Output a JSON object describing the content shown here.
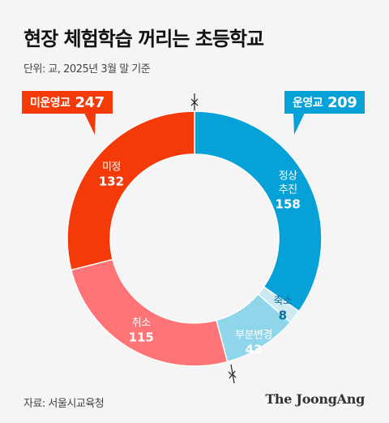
{
  "title": "현장 체험학습 꺼리는 초등학교",
  "unit_note": "단위: 교, 2025년 3월 말 기준",
  "source": "자료: 서울시교육청",
  "brand": "The JoongAng",
  "groups": [
    {
      "name": "미운영교",
      "total": "247",
      "color": "#f43a09"
    },
    {
      "name": "운영교",
      "total": "209",
      "color": "#06a2d7"
    }
  ],
  "chart_data": {
    "type": "pie",
    "variant": "donut",
    "title": "현장 체험학습 꺼리는 초등학교",
    "unit": "교",
    "order": "clockwise from top",
    "slices": [
      {
        "label": [
          "정상",
          "추진"
        ],
        "value": 158,
        "group": "운영교",
        "color": "#06a2d7",
        "text_color": "#ffffff"
      },
      {
        "label": [
          "축소"
        ],
        "value": 8,
        "group": "운영교",
        "color": "#cdeaf3",
        "text_color": "#0b6f9c"
      },
      {
        "label": [
          "부분변경"
        ],
        "value": 43,
        "group": "운영교",
        "color": "#8fd6ea",
        "text_color": "#ffffff"
      },
      {
        "label": [
          "취소"
        ],
        "value": 115,
        "group": "미운영교",
        "color": "#ff7477",
        "text_color": "#ffffff"
      },
      {
        "label": [
          "미정"
        ],
        "value": 132,
        "group": "미운영교",
        "color": "#f43a09",
        "text_color": "#ffffff"
      }
    ]
  }
}
